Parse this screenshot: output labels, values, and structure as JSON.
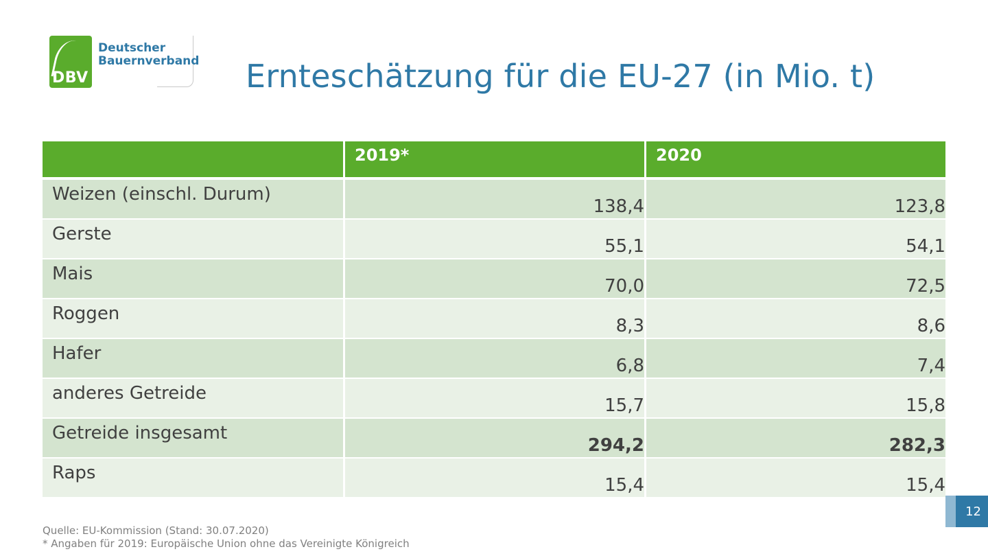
{
  "logo": {
    "abbr": "DBV",
    "name_line1": "Deutscher",
    "name_line2": "Bauernverband"
  },
  "title": "Ernteschätzung für die EU-27 (in Mio. t)",
  "table": {
    "headers": [
      "",
      "2019*",
      "2020"
    ],
    "rows": [
      {
        "label": "Weizen (einschl. Durum)",
        "v2019": "138,4",
        "v2020": "123,8"
      },
      {
        "label": "Gerste",
        "v2019": "55,1",
        "v2020": "54,1"
      },
      {
        "label": "Mais",
        "v2019": "70,0",
        "v2020": "72,5"
      },
      {
        "label": "Roggen",
        "v2019": "8,3",
        "v2020": "8,6"
      },
      {
        "label": "Hafer",
        "v2019": "6,8",
        "v2020": "7,4"
      },
      {
        "label": "anderes Getreide",
        "v2019": "15,7",
        "v2020": "15,8"
      },
      {
        "label": "Getreide insgesamt",
        "v2019": "294,2",
        "v2020": "282,3"
      },
      {
        "label": "Raps",
        "v2019": "15,4",
        "v2020": "15,4"
      }
    ]
  },
  "footnote": {
    "source": "Quelle: EU-Kommission (Stand: 30.07.2020)",
    "note": "* Angaben für 2019: Europäische Union ohne das Vereinigte Königreich"
  },
  "page_number": "12",
  "colors": {
    "brand_green": "#5aac2c",
    "brand_blue": "#2f79a6",
    "row_dark": "#d4e4cf",
    "row_light": "#e9f1e6"
  }
}
